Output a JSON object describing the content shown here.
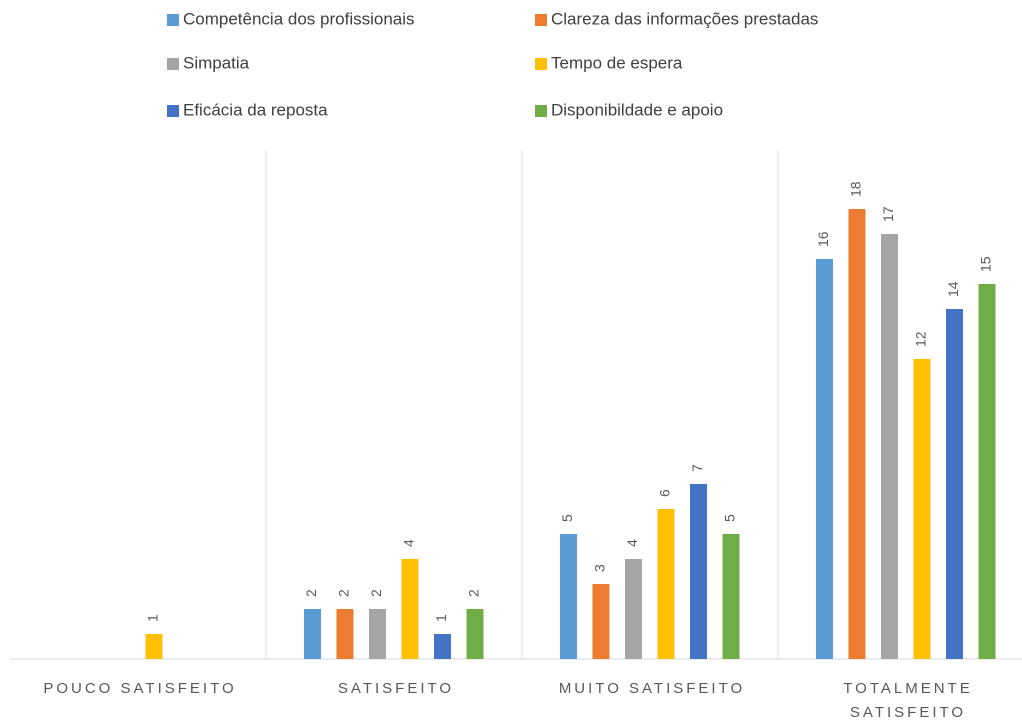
{
  "chart_data": {
    "type": "bar",
    "categories": [
      "POUCO SATISFEITO",
      "SATISFEITO",
      "MUITO SATISFEITO",
      "TOTALMENTE SATISFEITO"
    ],
    "series": [
      {
        "name": "Competência dos profissionais",
        "color": "#5b9bd5",
        "values": [
          null,
          2,
          5,
          16
        ]
      },
      {
        "name": "Clareza das informações prestadas",
        "color": "#ed7d31",
        "values": [
          null,
          2,
          3,
          18
        ]
      },
      {
        "name": "Simpatia",
        "color": "#a5a5a5",
        "values": [
          null,
          2,
          4,
          17
        ]
      },
      {
        "name": "Tempo de espera",
        "color": "#ffc000",
        "values": [
          1,
          4,
          6,
          12
        ]
      },
      {
        "name": "Eficácia da reposta",
        "color": "#4472c4",
        "values": [
          null,
          1,
          7,
          14
        ]
      },
      {
        "name": "Disponibildade e apoio",
        "color": "#70ad47",
        "values": [
          null,
          2,
          5,
          15
        ]
      }
    ],
    "ylim": [
      0,
      20
    ],
    "legend": "top",
    "data_labels": true
  }
}
